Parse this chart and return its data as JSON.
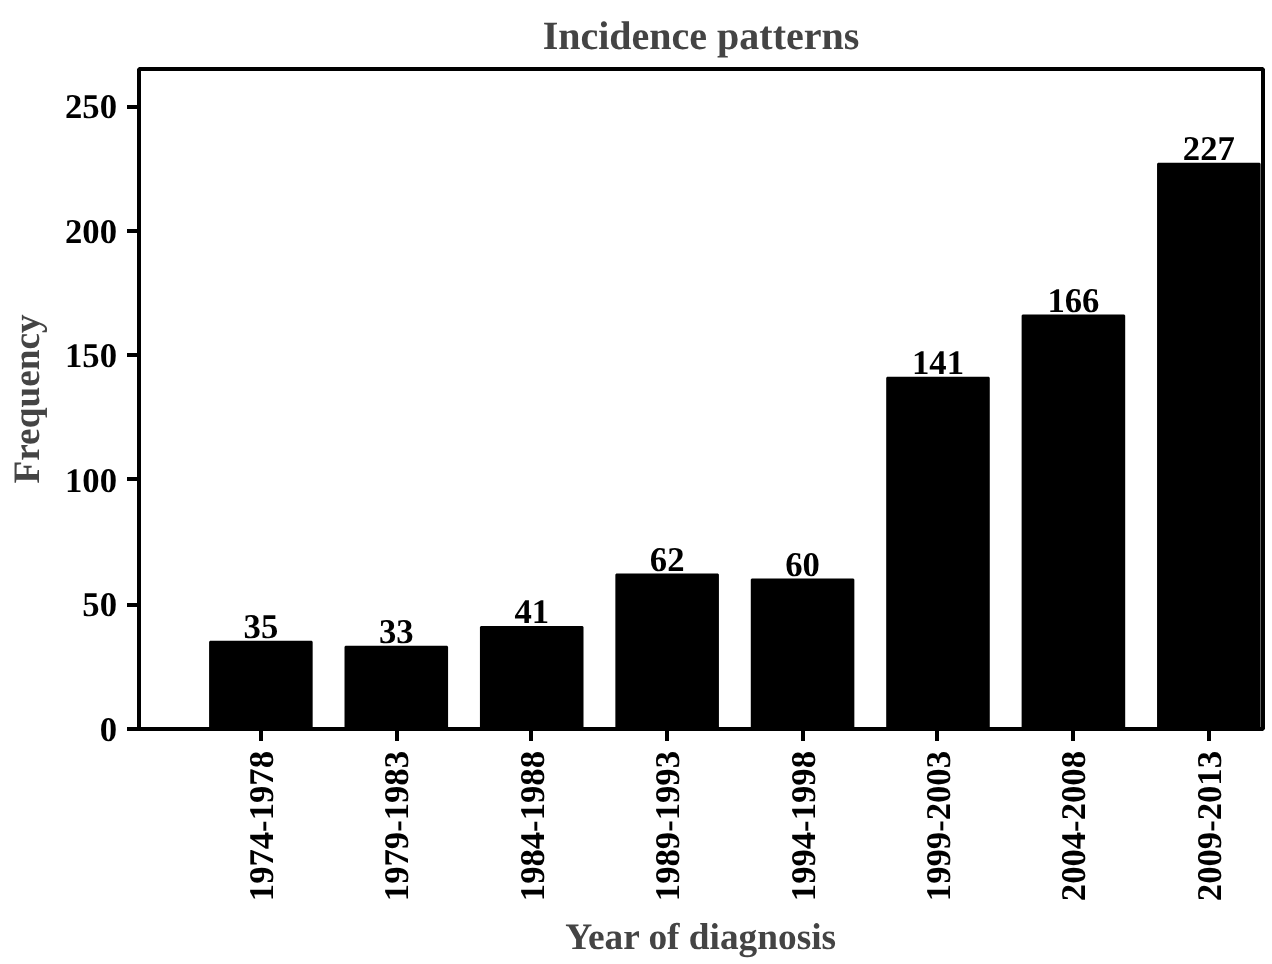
{
  "chart_data": {
    "type": "bar",
    "title": "Incidence patterns",
    "xlabel": "Year of diagnosis",
    "ylabel": "Frequency",
    "categories": [
      "1974-1978",
      "1979-1983",
      "1984-1988",
      "1989-1993",
      "1994-1998",
      "1999-2003",
      "2004-2008",
      "2009-2013"
    ],
    "values": [
      35,
      33,
      41,
      62,
      60,
      141,
      166,
      227
    ],
    "color": "#000000",
    "ylim": [
      0,
      265
    ],
    "yticks": [
      0,
      50,
      100,
      150,
      200,
      250
    ],
    "grid": false,
    "data_labels": true
  }
}
